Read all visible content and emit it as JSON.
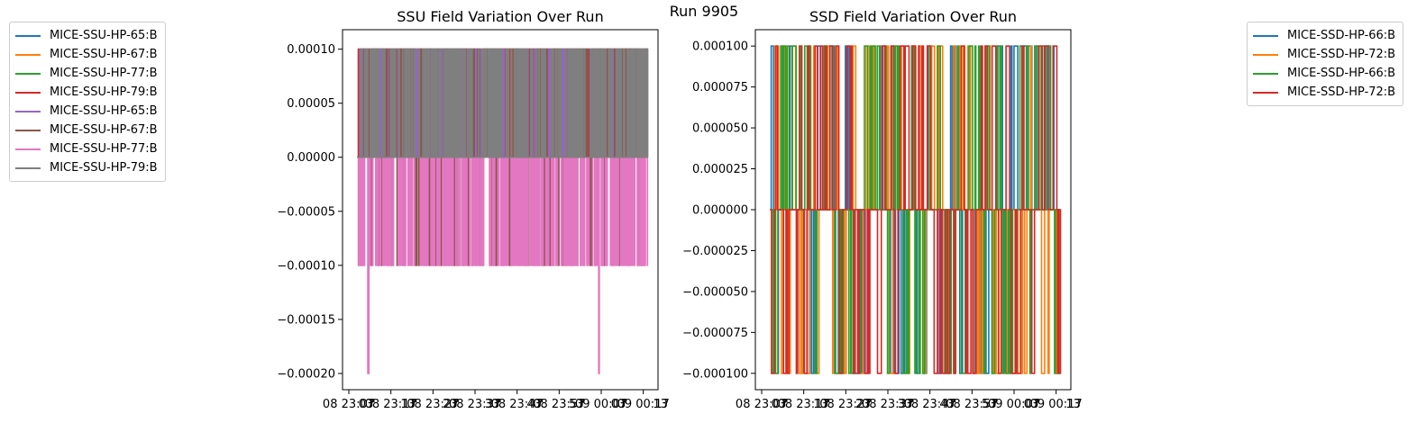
{
  "figure": {
    "suptitle": "Run 9905"
  },
  "chart_data": [
    {
      "type": "line",
      "title": "SSU Field Variation Over Run",
      "xlabel": "",
      "ylabel": "",
      "x_tick_labels": [
        "08 23:07",
        "08 23:17",
        "08 23:27",
        "08 23:37",
        "08 23:47",
        "08 23:57",
        "09 00:07",
        "09 00:17"
      ],
      "x_tick_labels_overlap": [
        "03",
        "13",
        "23",
        "33",
        "43",
        "53",
        "03",
        "13"
      ],
      "y_tick_labels": [
        "0.00010",
        "0.00005",
        "0.00000",
        "−0.00005",
        "−0.00010",
        "−0.00015",
        "−0.00020"
      ],
      "y_ticks": [
        0.0001,
        5e-05,
        0,
        -5e-05,
        -0.0001,
        -0.00015,
        -0.0002
      ],
      "ylim": [
        -0.000215,
        0.000118
      ],
      "x_range_minutes": [
        -1.5,
        73.5
      ],
      "data_span_minutes": [
        2,
        71
      ],
      "grid": false,
      "legend_position": "outside-left",
      "series": [
        {
          "name": "MICE-SSU-HP-65:B",
          "color": "#1f77b4",
          "values": [
            0,
            0.0001
          ]
        },
        {
          "name": "MICE-SSU-HP-67:B",
          "color": "#ff7f0e",
          "values": [
            0,
            0.0001
          ]
        },
        {
          "name": "MICE-SSU-HP-77:B",
          "color": "#2ca02c",
          "values": [
            0,
            0.0001
          ]
        },
        {
          "name": "MICE-SSU-HP-79:B",
          "color": "#d62728",
          "values": [
            0,
            0.0001
          ]
        },
        {
          "name": "MICE-SSU-HP-65:B",
          "color": "#9467bd",
          "values": [
            0,
            0.0001
          ]
        },
        {
          "name": "MICE-SSU-HP-67:B",
          "color": "#8c564b",
          "values": [
            0,
            0.0001,
            -0.0001
          ]
        },
        {
          "name": "MICE-SSU-HP-77:B",
          "color": "#e377c2",
          "values": [
            0,
            -0.0001,
            -0.0002
          ]
        },
        {
          "name": "MICE-SSU-HP-79:B",
          "color": "#7f7f7f",
          "values": [
            0,
            0.0001
          ]
        }
      ]
    },
    {
      "type": "line",
      "title": "SSD Field Variation Over Run",
      "xlabel": "",
      "ylabel": "",
      "x_tick_labels": [
        "08 23:07",
        "08 23:17",
        "08 23:27",
        "08 23:37",
        "08 23:47",
        "08 23:57",
        "09 00:07",
        "09 00:17"
      ],
      "x_tick_labels_overlap": [
        "03",
        "13",
        "23",
        "33",
        "43",
        "53",
        "03",
        "13"
      ],
      "y_tick_labels": [
        "0.000100",
        "0.000075",
        "0.000050",
        "0.000025",
        "0.000000",
        "−0.000025",
        "−0.000050",
        "−0.000075",
        "−0.000100"
      ],
      "y_ticks": [
        0.0001,
        7.5e-05,
        5e-05,
        2.5e-05,
        0,
        -2.5e-05,
        -5e-05,
        -7.5e-05,
        -0.0001
      ],
      "ylim": [
        -0.00011,
        0.00011
      ],
      "x_range_minutes": [
        -1.5,
        73.5
      ],
      "data_span_minutes": [
        2,
        71
      ],
      "grid": false,
      "legend_position": "outside-right",
      "series": [
        {
          "name": "MICE-SSD-HP-66:B",
          "color": "#1f77b4",
          "values": [
            0,
            0.0001,
            -0.0001
          ]
        },
        {
          "name": "MICE-SSD-HP-72:B",
          "color": "#ff7f0e",
          "values": [
            0,
            0.0001,
            -0.0001
          ]
        },
        {
          "name": "MICE-SSD-HP-66:B",
          "color": "#2ca02c",
          "values": [
            0,
            0.0001,
            -0.0001
          ]
        },
        {
          "name": "MICE-SSD-HP-72:B",
          "color": "#d62728",
          "values": [
            0,
            0.0001,
            -0.0001
          ]
        }
      ]
    }
  ]
}
